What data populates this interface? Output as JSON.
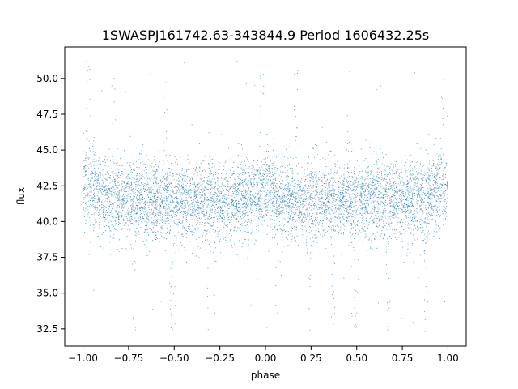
{
  "chart_data": {
    "type": "scatter",
    "title": "1SWASPJ161742.63-343844.9 Period 1606432.25s",
    "xlabel": "phase",
    "ylabel": "flux",
    "xlim": [
      -1.1,
      1.1
    ],
    "ylim": [
      31.3,
      52.2
    ],
    "xticks": [
      -1.0,
      -0.75,
      -0.5,
      -0.25,
      0.0,
      0.25,
      0.5,
      0.75,
      1.0
    ],
    "xtick_labels": [
      "−1.00",
      "−0.75",
      "−0.50",
      "−0.25",
      "0.00",
      "0.25",
      "0.50",
      "0.75",
      "1.00"
    ],
    "yticks": [
      32.5,
      35.0,
      37.5,
      40.0,
      42.5,
      45.0,
      47.5,
      50.0
    ],
    "ytick_labels": [
      "32.5",
      "35.0",
      "37.5",
      "40.0",
      "42.5",
      "45.0",
      "47.5",
      "50.0"
    ],
    "grid": false,
    "legend": "none",
    "marker_color": "#1f77b4",
    "series": [
      {
        "description_ref": "folded light curve, mirrored about phase 0",
        "phase_range": [
          -1.0,
          1.0
        ],
        "flux_baseline": 41.5,
        "flux_core_range": [
          39.0,
          45.0
        ],
        "flux_outlier_range": [
          32.3,
          51.3
        ],
        "bright_clumps_phase": [
          -0.97,
          -0.83,
          -0.55,
          -0.02,
          0.17,
          0.45,
          0.97
        ],
        "faint_dips_phase": [
          -0.72,
          -0.52,
          -0.5,
          -0.32,
          -0.28,
          0.06,
          0.24,
          0.37,
          0.48,
          0.5,
          0.67,
          0.88
        ],
        "point_count": 7000
      }
    ]
  }
}
